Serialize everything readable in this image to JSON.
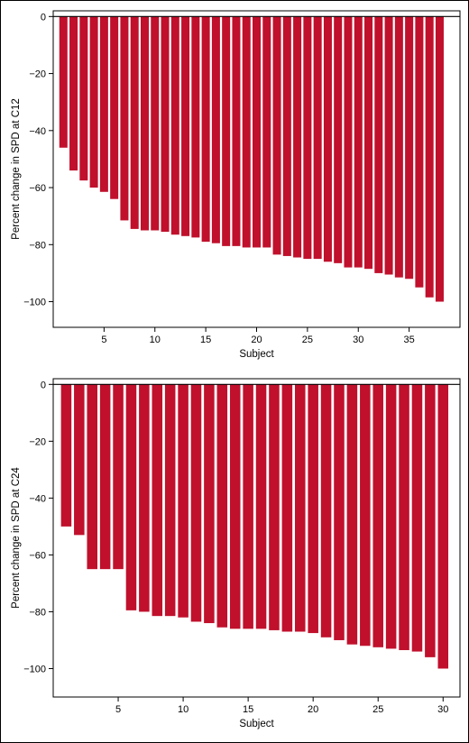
{
  "colors": {
    "bar": "#c0102c",
    "axis": "#000000",
    "background": "#ffffff"
  },
  "chart_data": [
    {
      "type": "bar",
      "xlabel": "Subject",
      "ylabel": "Percent change in SPD at C12",
      "xlim": [
        0,
        40
      ],
      "ylim": [
        -109,
        2
      ],
      "xticks": [
        5,
        10,
        15,
        20,
        25,
        30,
        35
      ],
      "yticks": [
        0,
        -20,
        -40,
        -60,
        -80,
        -100
      ],
      "grid": false,
      "categories": [
        1,
        2,
        3,
        4,
        5,
        6,
        7,
        8,
        9,
        10,
        11,
        12,
        13,
        14,
        15,
        16,
        17,
        18,
        19,
        20,
        21,
        22,
        23,
        24,
        25,
        26,
        27,
        28,
        29,
        30,
        31,
        32,
        33,
        34,
        35,
        36,
        37,
        38
      ],
      "values": [
        -46,
        -54,
        -57.5,
        -60,
        -61.5,
        -64,
        -71.5,
        -74.5,
        -75,
        -75,
        -75.5,
        -76.5,
        -77,
        -77.5,
        -79,
        -79.5,
        -80.5,
        -80.5,
        -81,
        -81,
        -81,
        -83.5,
        -84,
        -84.5,
        -85,
        -85,
        -86,
        -86.5,
        -88,
        -88,
        -88.5,
        -90,
        -90.5,
        -91.5,
        -92,
        -95,
        -98.5,
        -100
      ]
    },
    {
      "type": "bar",
      "xlabel": "Subject",
      "ylabel": "Percent change in SPD at C24",
      "xlim": [
        0,
        31.3
      ],
      "ylim": [
        -110,
        2
      ],
      "xticks": [
        5,
        10,
        15,
        20,
        25,
        30
      ],
      "yticks": [
        0,
        -20,
        -40,
        -60,
        -80,
        -100
      ],
      "grid": false,
      "categories": [
        1,
        2,
        3,
        4,
        5,
        6,
        7,
        8,
        9,
        10,
        11,
        12,
        13,
        14,
        15,
        16,
        17,
        18,
        19,
        20,
        21,
        22,
        23,
        24,
        25,
        26,
        27,
        28,
        29,
        30
      ],
      "values": [
        -50,
        -53,
        -65,
        -65,
        -65,
        -79.5,
        -80,
        -81.5,
        -81.5,
        -82,
        -83.5,
        -84,
        -85.5,
        -86,
        -86,
        -86,
        -86.5,
        -87,
        -87,
        -87.5,
        -89,
        -90,
        -91.5,
        -92,
        -92.5,
        -93,
        -93.5,
        -94,
        -96,
        -100
      ]
    }
  ]
}
